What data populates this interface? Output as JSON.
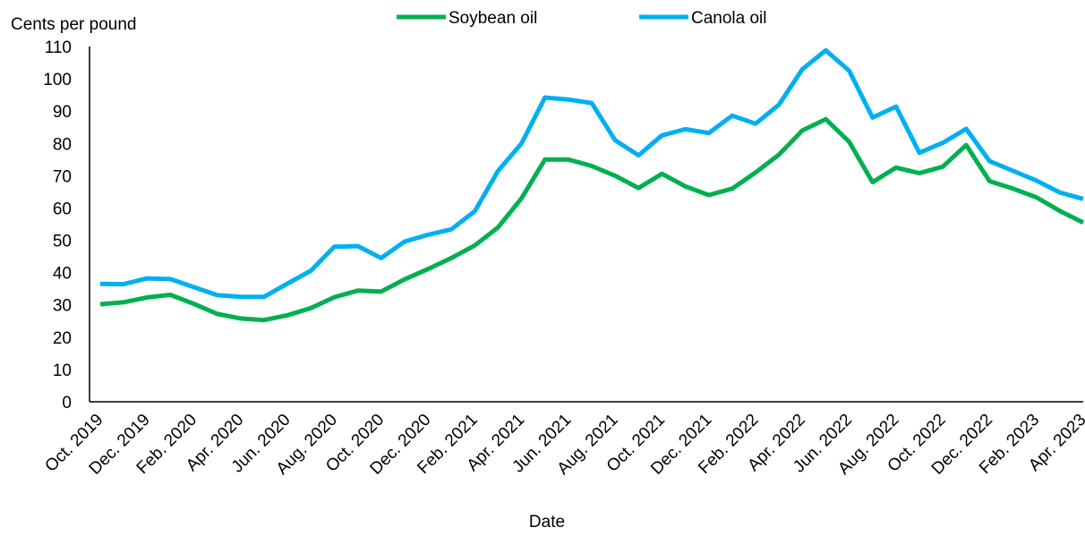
{
  "chart_data": {
    "type": "line",
    "title": "",
    "ylabel": "Cents per pound",
    "xlabel": "Date",
    "ylim": [
      0,
      110
    ],
    "yticks": [
      0,
      10,
      20,
      30,
      40,
      50,
      60,
      70,
      80,
      90,
      100,
      110
    ],
    "legend_position": "top",
    "x": [
      "Oct. 2019",
      "Nov. 2019",
      "Dec. 2019",
      "Jan. 2020",
      "Feb. 2020",
      "Mar. 2020",
      "Apr. 2020",
      "May. 2020",
      "Jun. 2020",
      "Jul. 2020",
      "Aug. 2020",
      "Sep. 2020",
      "Oct. 2020",
      "Nov. 2020",
      "Dec. 2020",
      "Jan. 2021",
      "Feb. 2021",
      "Mar. 2021",
      "Apr. 2021",
      "May. 2021",
      "Jun. 2021",
      "Jul. 2021",
      "Aug. 2021",
      "Sep. 2021",
      "Oct. 2021",
      "Nov. 2021",
      "Dec. 2021",
      "Jan. 2022",
      "Feb. 2022",
      "Mar. 2022",
      "Apr. 2022",
      "May. 2022",
      "Jun. 2022",
      "Jul. 2022",
      "Aug. 2022",
      "Sep. 2022",
      "Oct. 2022",
      "Nov. 2022",
      "Dec. 2022",
      "Jan. 2023",
      "Feb. 2023",
      "Mar. 2023",
      "Apr. 2023"
    ],
    "tick_labels": [
      "Oct. 2019",
      "Dec. 2019",
      "Feb. 2020",
      "Apr. 2020",
      "Jun. 2020",
      "Aug. 2020",
      "Oct. 2020",
      "Dec. 2020",
      "Feb. 2021",
      "Apr. 2021",
      "Jun. 2021",
      "Aug. 2021",
      "Oct. 2021",
      "Dec. 2021",
      "Feb. 2022",
      "Apr. 2022",
      "Jun. 2022",
      "Aug. 2022",
      "Oct. 2022",
      "Dec. 2022",
      "Feb. 2023",
      "Apr. 2023"
    ],
    "series": [
      {
        "name": "Soybean oil",
        "color": "#00b050",
        "values": [
          30.2,
          30.8,
          32.3,
          33.1,
          30.3,
          27.2,
          25.8,
          25.3,
          26.8,
          29.0,
          32.4,
          34.4,
          34.1,
          37.9,
          41.1,
          44.5,
          48.4,
          54.0,
          63.0,
          75.0,
          75.0,
          73.0,
          70.0,
          66.2,
          70.6,
          66.7,
          64.0,
          66.0,
          71.0,
          76.5,
          84.0,
          87.5,
          80.5,
          68.0,
          72.5,
          70.8,
          72.8,
          79.5,
          68.3,
          66.0,
          63.3,
          59.1,
          55.5
        ]
      },
      {
        "name": "Canola oil",
        "color": "#00b0f0",
        "values": [
          36.5,
          36.4,
          38.2,
          38.0,
          35.5,
          33.0,
          32.5,
          32.5,
          36.6,
          40.6,
          48.0,
          48.2,
          44.5,
          49.6,
          51.7,
          53.4,
          59.0,
          71.5,
          80.0,
          94.2,
          93.6,
          92.5,
          81.0,
          76.3,
          82.5,
          84.4,
          83.2,
          88.6,
          86.1,
          92.0,
          103.0,
          108.8,
          102.5,
          88.0,
          91.4,
          77.1,
          80.2,
          84.5,
          74.5,
          71.5,
          68.5,
          64.8,
          62.8
        ]
      }
    ]
  }
}
